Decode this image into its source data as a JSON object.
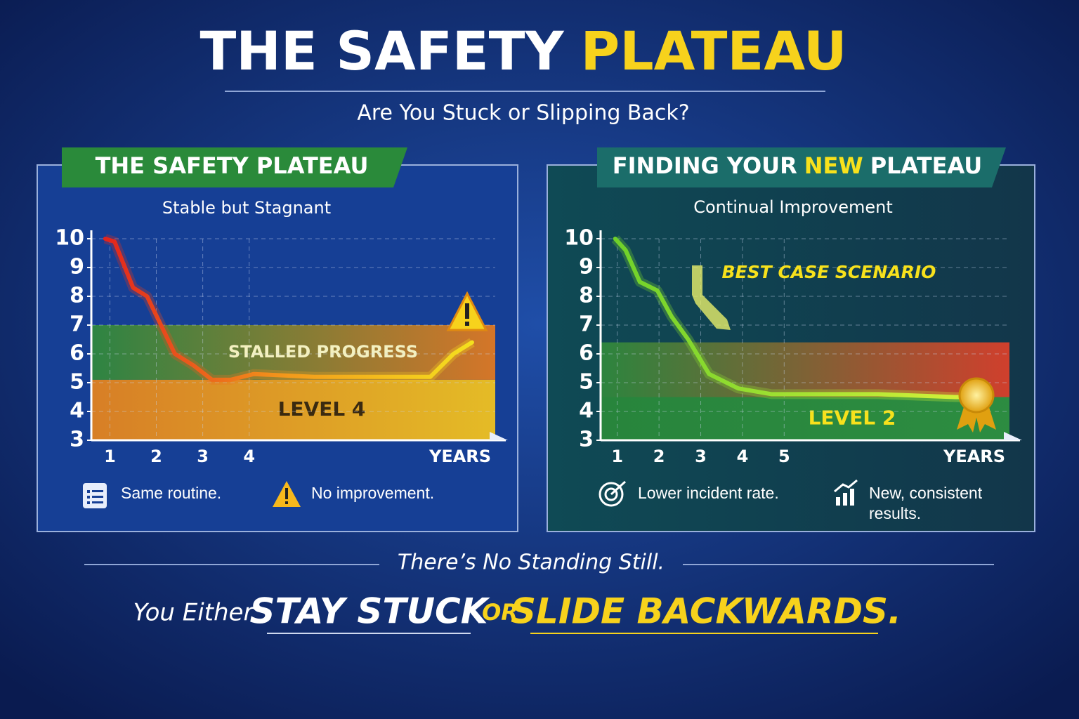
{
  "header": {
    "title": [
      "THE SAFETY",
      "PLATEAU"
    ],
    "subtitle": "Are You Stuck or Slipping Back?"
  },
  "chart_data": [
    {
      "type": "line",
      "title": [
        "THE SAFETY PLATEAU"
      ],
      "subtitle": "Stable but Stagnant",
      "xlabel": "YEARS",
      "xlim": [
        0.6,
        9.3
      ],
      "xticks": [
        1,
        2,
        3,
        4
      ],
      "ylim": [
        3,
        10
      ],
      "yticks": [
        3,
        4,
        5,
        6,
        7,
        8,
        9,
        10
      ],
      "grid": true,
      "bands": [
        {
          "label": "STALLED PROGRESS",
          "from": 5.1,
          "to": 7,
          "colors": [
            "#2f8a3c",
            "#e57a1f"
          ]
        },
        {
          "label": "LEVEL 4",
          "from": 3,
          "to": 5.1,
          "colors": [
            "#e8841c",
            "#f6c61d"
          ]
        }
      ],
      "series": [
        {
          "x": [
            0.9,
            1.1,
            1.5,
            1.8,
            2.4,
            2.8,
            3.2,
            3.6,
            4.1,
            5.4,
            7.9,
            8.4,
            8.8
          ],
          "values": [
            10,
            9.9,
            8.3,
            8,
            6,
            5.6,
            5.1,
            5.1,
            5.3,
            5.2,
            5.2,
            6,
            6.4
          ],
          "colors": [
            "#e3241c",
            "#f39a1b",
            "#f4e01e"
          ]
        }
      ],
      "notes": [
        "Same routine.",
        "No improvement."
      ]
    },
    {
      "type": "line",
      "title": [
        "FINDING YOUR",
        "NEW",
        "PLATEAU"
      ],
      "subtitle": "Continual Improvement",
      "xlabel": "YEARS",
      "annotation": "BEST CASE SCENARIO",
      "xlim": [
        0.6,
        10.4
      ],
      "xticks": [
        1,
        2,
        3,
        4,
        5
      ],
      "ylim": [
        3,
        10
      ],
      "yticks": [
        3,
        4,
        5,
        6,
        7,
        8,
        9,
        10
      ],
      "grid": true,
      "bands": [
        {
          "label": "",
          "from": 4.5,
          "to": 6.4,
          "colors": [
            "#2f8a3c",
            "#e0402a"
          ]
        },
        {
          "label": "LEVEL 2",
          "from": 3,
          "to": 4.5,
          "colors": [
            "#2a8a3a",
            "#2f9440"
          ]
        }
      ],
      "series": [
        {
          "x": [
            0.95,
            1.2,
            1.54,
            1.96,
            2.3,
            2.7,
            3.2,
            3.9,
            4.7,
            7.25,
            9.1,
            9.6
          ],
          "values": [
            10,
            9.6,
            8.5,
            8.2,
            7.3,
            6.5,
            5.3,
            4.8,
            4.6,
            4.6,
            4.5,
            4.5
          ],
          "colors": [
            "#6fd12a",
            "#d7f23a"
          ]
        }
      ],
      "notes": [
        "Lower incident rate.",
        "New, consistent results."
      ]
    }
  ],
  "footer": {
    "tagline": "There’s No Standing Still.",
    "lead": "You Either",
    "choice_1": "STAY STUCK",
    "joiner": "OR",
    "choice_2": "SLIDE BACKWARDS."
  }
}
